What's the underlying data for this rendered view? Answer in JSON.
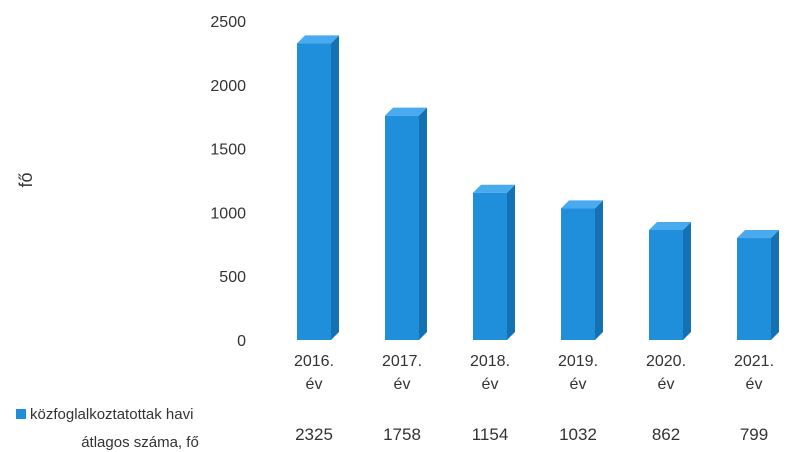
{
  "chart_data": {
    "type": "bar",
    "ylabel": "fő",
    "ylim": [
      0,
      2500
    ],
    "yticks": [
      0,
      500,
      1000,
      1500,
      2000,
      2500
    ],
    "grid": false,
    "style": "3d-columns",
    "categories": [
      [
        "2016.",
        "év"
      ],
      [
        "2017.",
        "év"
      ],
      [
        "2018.",
        "év"
      ],
      [
        "2019.",
        "év"
      ],
      [
        "2020.",
        "év"
      ],
      [
        "2021.",
        "év"
      ]
    ],
    "series": [
      {
        "name": [
          "közfoglalkoztatottak havi",
          "átlagos száma, fő"
        ],
        "color": "#1f8fdc",
        "values": [
          2325,
          1758,
          1154,
          1032,
          862,
          799
        ]
      }
    ]
  },
  "colors": {
    "bar_front": "#1f8fdc",
    "bar_side": "#1671b2",
    "bar_top": "#4aaaf0"
  }
}
